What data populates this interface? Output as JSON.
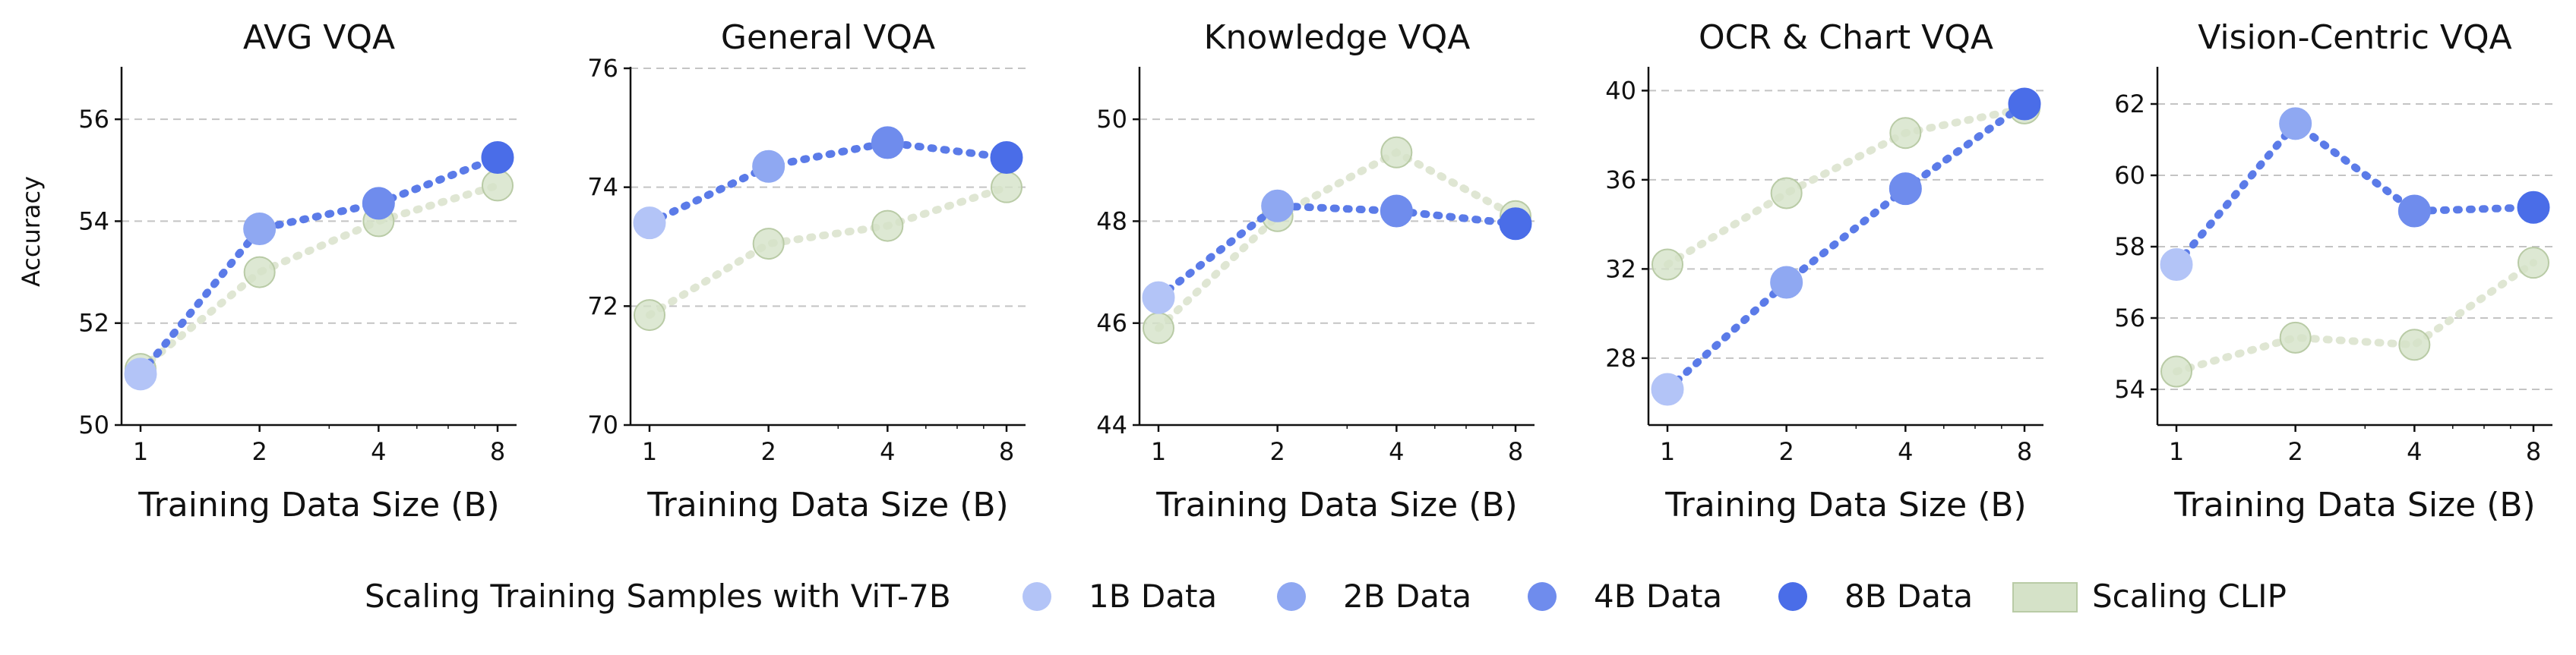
{
  "chart_data": [
    {
      "type": "line",
      "title": "AVG VQA",
      "xlabel": "Training Data Size (B)",
      "ylabel": "Accuracy",
      "x": [
        1,
        2,
        4,
        8
      ],
      "xscale": "log2",
      "ylim": [
        50,
        57
      ],
      "yticks": [
        50,
        52,
        54,
        56
      ],
      "grid": "y dashed",
      "series": [
        {
          "name": "Scaling Training Samples with ViT-7B",
          "values": [
            51.0,
            53.85,
            54.35,
            55.25
          ]
        },
        {
          "name": "Scaling CLIP",
          "values": [
            51.1,
            53.0,
            54.0,
            54.7
          ]
        }
      ]
    },
    {
      "type": "line",
      "title": "General VQA",
      "xlabel": "Training Data Size (B)",
      "ylabel": "",
      "x": [
        1,
        2,
        4,
        8
      ],
      "xscale": "log2",
      "ylim": [
        70,
        76
      ],
      "yticks": [
        70,
        72,
        74,
        76
      ],
      "grid": "y dashed",
      "series": [
        {
          "name": "Scaling Training Samples with ViT-7B",
          "values": [
            73.4,
            74.35,
            74.75,
            74.5
          ]
        },
        {
          "name": "Scaling CLIP",
          "values": [
            71.85,
            73.05,
            73.35,
            74.0
          ]
        }
      ]
    },
    {
      "type": "line",
      "title": "Knowledge VQA",
      "xlabel": "Training Data Size (B)",
      "ylabel": "",
      "x": [
        1,
        2,
        4,
        8
      ],
      "xscale": "log2",
      "ylim": [
        44,
        51
      ],
      "yticks": [
        44,
        46,
        48,
        50
      ],
      "grid": "y dashed",
      "series": [
        {
          "name": "Scaling Training Samples with ViT-7B",
          "values": [
            46.5,
            48.3,
            48.2,
            47.95
          ]
        },
        {
          "name": "Scaling CLIP",
          "values": [
            45.9,
            48.1,
            49.35,
            48.1
          ]
        }
      ]
    },
    {
      "type": "line",
      "title": "OCR & Chart VQA",
      "xlabel": "Training Data Size (B)",
      "ylabel": "",
      "x": [
        1,
        2,
        4,
        8
      ],
      "xscale": "log2",
      "ylim": [
        25,
        41
      ],
      "yticks": [
        28,
        32,
        36,
        40
      ],
      "grid": "y dashed",
      "series": [
        {
          "name": "Scaling Training Samples with ViT-7B",
          "values": [
            26.6,
            31.4,
            35.6,
            39.4
          ]
        },
        {
          "name": "Scaling CLIP",
          "values": [
            32.2,
            35.4,
            38.1,
            39.2
          ]
        }
      ]
    },
    {
      "type": "line",
      "title": "Vision-Centric VQA",
      "xlabel": "Training Data Size (B)",
      "ylabel": "",
      "x": [
        1,
        2,
        4,
        8
      ],
      "xscale": "log2",
      "ylim": [
        53,
        63
      ],
      "yticks": [
        54,
        56,
        58,
        60,
        62
      ],
      "grid": "y dashed",
      "series": [
        {
          "name": "Scaling Training Samples with ViT-7B",
          "values": [
            57.5,
            61.45,
            59.0,
            59.1
          ]
        },
        {
          "name": "Scaling CLIP",
          "values": [
            54.5,
            55.45,
            55.25,
            57.55
          ]
        }
      ]
    }
  ],
  "legend": {
    "placement": "bottom-center",
    "title": "Scaling Training Samples with ViT-7B",
    "items": [
      {
        "label": "1B Data",
        "color": "#b3c4f7"
      },
      {
        "label": "2B Data",
        "color": "#8fa8f2"
      },
      {
        "label": "4B Data",
        "color": "#6f8ced"
      },
      {
        "label": "8B Data",
        "color": "#4a6de8"
      },
      {
        "label": "Scaling CLIP",
        "color": "#d5e2c8"
      }
    ]
  },
  "colors": {
    "vit_line": "#5b7be8",
    "vit_points": [
      "#b3c4f7",
      "#8fa8f2",
      "#6f8ced",
      "#4a6de8"
    ],
    "clip_line": "#dfe6d3",
    "clip_fill": "#d5e2c8",
    "clip_edge": "#b9cba6",
    "grid": "#c4c4c4"
  }
}
